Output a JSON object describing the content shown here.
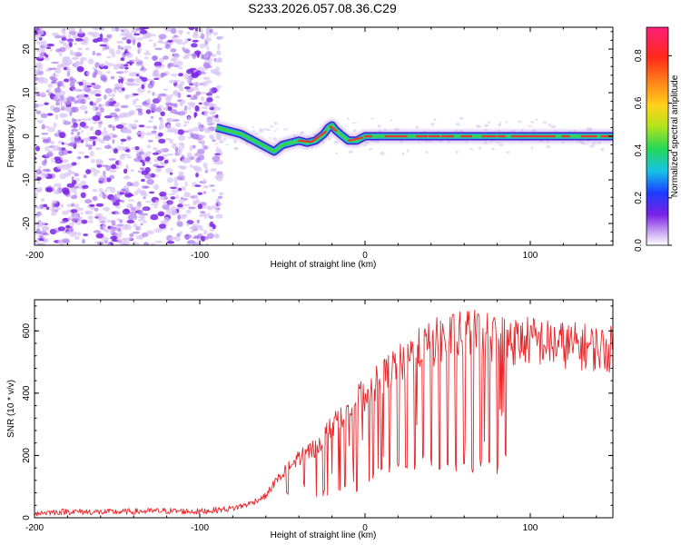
{
  "title": "S233.2026.057.08.36.C29",
  "colors": {
    "snr_line": "#e8262a",
    "signal_core": "#e53935",
    "signal_mid": "#39d353",
    "signal_edge": "#1fb6d0",
    "noise_dark": "#7a22e6",
    "noise_light": "#d9c5f5",
    "axis": "#000000"
  },
  "chart_data": [
    {
      "id": "spectrogram",
      "type": "heatmap",
      "title": "S233.2026.057.08.36.C29",
      "xlabel": "Height of straight line (km)",
      "ylabel": "Frequency (Hz)",
      "xlim": [
        -200,
        150
      ],
      "ylim": [
        -25,
        25
      ],
      "xticks": [
        "-200",
        "-100",
        "0",
        "100"
      ],
      "xtick_values": [
        -200,
        -100,
        0,
        100
      ],
      "yticks": [
        "-20",
        "-10",
        "0",
        "10",
        "20"
      ],
      "ytick_values": [
        -20,
        -10,
        0,
        10,
        20
      ],
      "noise_region_x": [
        -200,
        -90
      ],
      "signal_track": {
        "x": [
          -90,
          -85,
          -80,
          -75,
          -70,
          -65,
          -60,
          -55,
          -50,
          -45,
          -40,
          -35,
          -30,
          -25,
          -22,
          -20,
          -18,
          -15,
          -10,
          -5,
          0,
          10,
          20,
          50,
          100,
          150
        ],
        "freq": [
          2,
          1.5,
          1,
          0.5,
          -0.5,
          -1.5,
          -2.5,
          -3.5,
          -2,
          -1.5,
          -1,
          -1.5,
          -1,
          0.5,
          2,
          2.5,
          1.5,
          0.5,
          -1,
          -1,
          0,
          0,
          0,
          0,
          0,
          0
        ]
      },
      "colorbar": {
        "label": "Normalized spectral amplitude",
        "range": [
          0,
          0.92
        ],
        "ticks": [
          "0.0",
          "0.2",
          "0.4",
          "0.6",
          "0.8"
        ],
        "tick_values": [
          0.0,
          0.2,
          0.4,
          0.6,
          0.8
        ]
      }
    },
    {
      "id": "snr",
      "type": "line",
      "xlabel": "Height of straight line (km)",
      "ylabel": "SNR (10 * v/v)",
      "xlim": [
        -200,
        150
      ],
      "ylim": [
        0,
        700
      ],
      "xticks": [
        "-200",
        "-100",
        "0",
        "100"
      ],
      "xtick_values": [
        -200,
        -100,
        0,
        100
      ],
      "yticks": [
        "0",
        "200",
        "400",
        "600"
      ],
      "ytick_values": [
        0,
        200,
        400,
        600
      ],
      "series": [
        {
          "name": "SNR",
          "x": [
            -200,
            -180,
            -160,
            -140,
            -120,
            -100,
            -90,
            -80,
            -70,
            -60,
            -55,
            -50,
            -45,
            -40,
            -35,
            -30,
            -25,
            -20,
            -15,
            -10,
            -5,
            0,
            5,
            10,
            15,
            20,
            25,
            30,
            35,
            40,
            45,
            50,
            55,
            60,
            65,
            70,
            75,
            80,
            85,
            90,
            100,
            110,
            120,
            130,
            140,
            150
          ],
          "values": [
            15,
            20,
            18,
            20,
            22,
            20,
            25,
            30,
            45,
            70,
            110,
            140,
            170,
            195,
            210,
            225,
            260,
            290,
            330,
            360,
            380,
            390,
            420,
            440,
            470,
            490,
            510,
            530,
            540,
            555,
            570,
            575,
            580,
            585,
            590,
            585,
            580,
            575,
            570,
            565,
            570,
            560,
            555,
            550,
            545,
            540
          ],
          "dips": [
            {
              "x": -47,
              "value": 60
            },
            {
              "x": -37,
              "value": 80
            },
            {
              "x": -25,
              "value": 60
            },
            {
              "x": -12,
              "value": 90
            },
            {
              "x": -5,
              "value": 70
            },
            {
              "x": 5,
              "value": 120
            },
            {
              "x": 10,
              "value": 150
            },
            {
              "x": 15,
              "value": 140
            },
            {
              "x": 20,
              "value": 150
            },
            {
              "x": 25,
              "value": 150
            },
            {
              "x": 30,
              "value": 150
            },
            {
              "x": 35,
              "value": 170
            },
            {
              "x": 40,
              "value": 160
            },
            {
              "x": 45,
              "value": 150
            },
            {
              "x": 50,
              "value": 165
            },
            {
              "x": 55,
              "value": 150
            },
            {
              "x": 60,
              "value": 150
            },
            {
              "x": 65,
              "value": 140
            },
            {
              "x": 70,
              "value": 160
            },
            {
              "x": 75,
              "value": 150
            },
            {
              "x": 80,
              "value": 140
            },
            {
              "x": 85,
              "value": 180
            }
          ]
        }
      ]
    }
  ]
}
